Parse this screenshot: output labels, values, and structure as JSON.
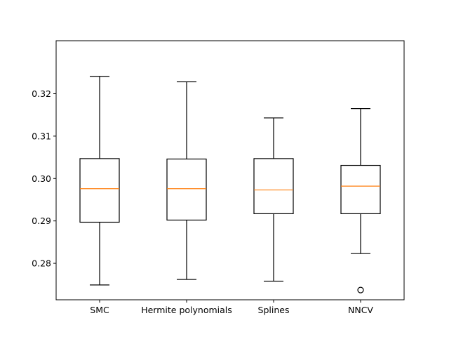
{
  "chart_data": {
    "type": "box",
    "title": "",
    "xlabel": "",
    "ylabel": "",
    "ylim": [
      0.2714,
      0.3325
    ],
    "yticks": [
      0.28,
      0.29,
      0.3,
      0.31,
      0.32
    ],
    "ytick_labels": [
      "0.28",
      "0.29",
      "0.30",
      "0.31",
      "0.32"
    ],
    "categories": [
      "SMC",
      "Hermite polynomials",
      "Splines",
      "NNCV"
    ],
    "boxes": [
      {
        "name": "SMC",
        "whisker_low": 0.2749,
        "q1": 0.2897,
        "median": 0.2976,
        "q3": 0.3047,
        "whisker_high": 0.3241,
        "outliers": []
      },
      {
        "name": "Hermite polynomials",
        "whisker_low": 0.2762,
        "q1": 0.2902,
        "median": 0.2976,
        "q3": 0.3046,
        "whisker_high": 0.3228,
        "outliers": []
      },
      {
        "name": "Splines",
        "whisker_low": 0.2758,
        "q1": 0.2917,
        "median": 0.2973,
        "q3": 0.3047,
        "whisker_high": 0.3143,
        "outliers": []
      },
      {
        "name": "NNCV",
        "whisker_low": 0.2823,
        "q1": 0.2917,
        "median": 0.2982,
        "q3": 0.3031,
        "whisker_high": 0.3165,
        "outliers": [
          0.2737
        ]
      }
    ],
    "colors": {
      "box": "#000000",
      "median": "#ff7f0e",
      "axes": "#000000"
    },
    "grid": false,
    "legend": "none"
  }
}
